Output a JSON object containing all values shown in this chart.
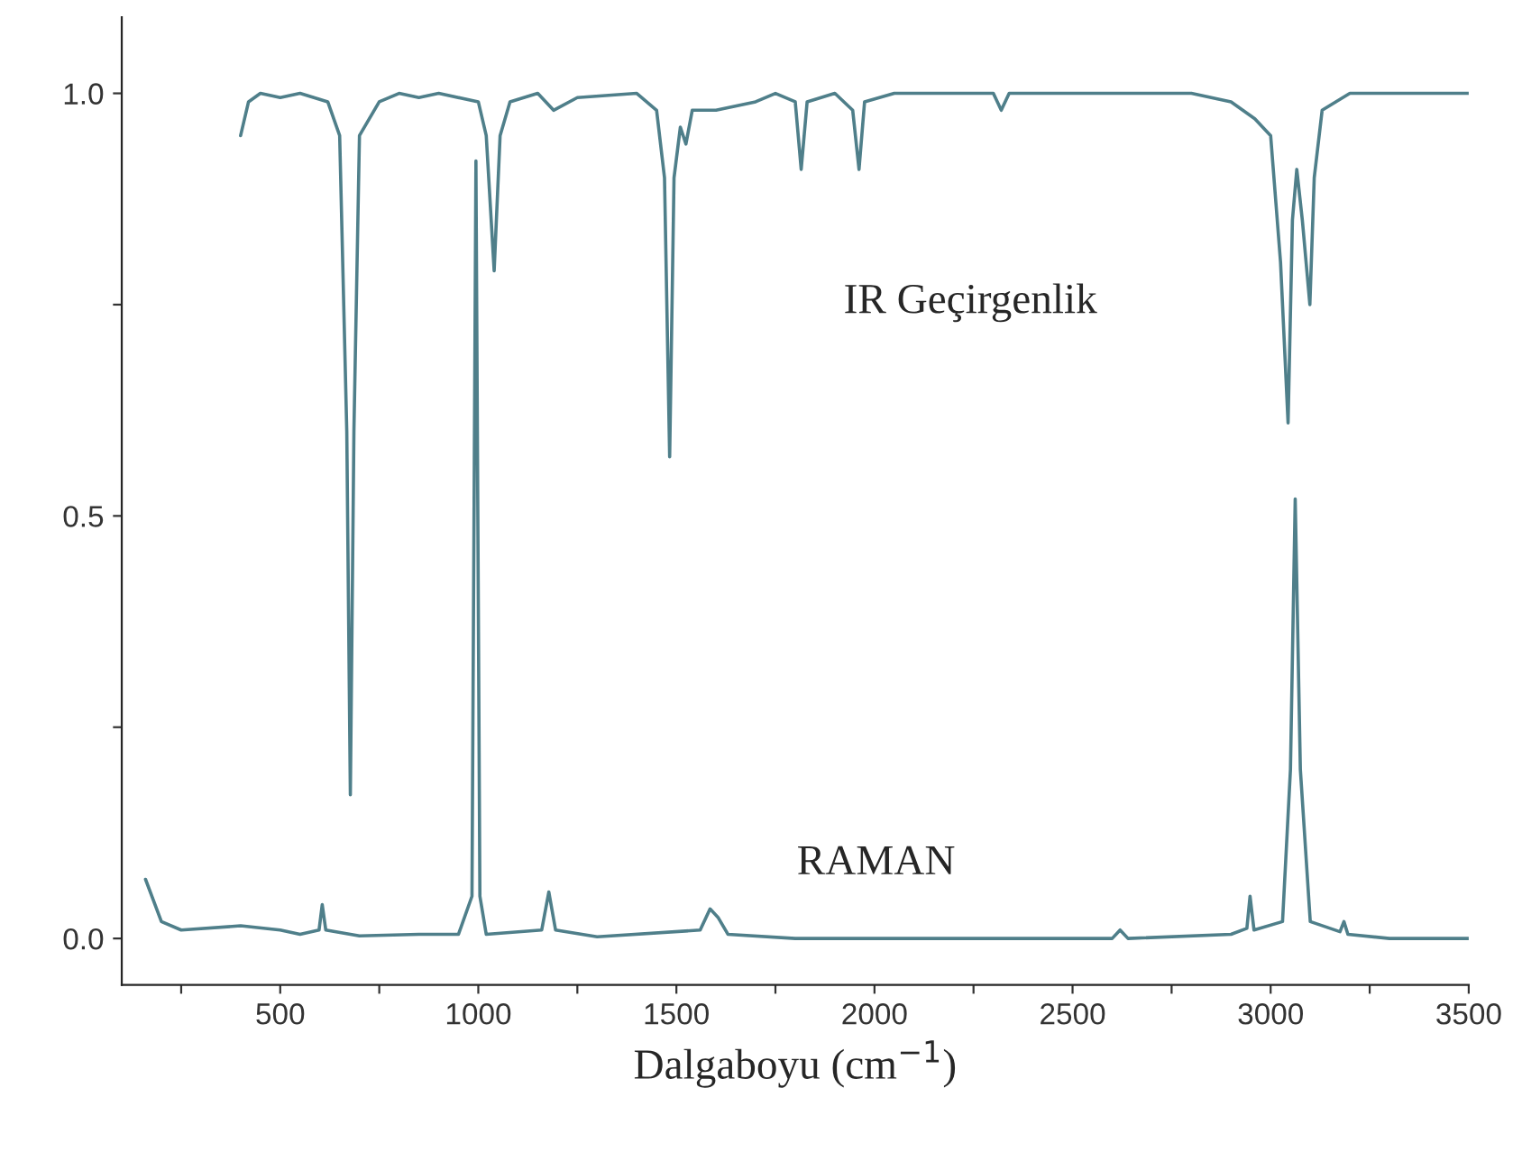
{
  "chart_data": {
    "type": "line",
    "xlabel": "Dalgaboyu (cm$^{−1}$)",
    "xlim": [
      100,
      3500
    ],
    "ylim": [
      -0.055,
      1.09
    ],
    "xticks": [
      {
        "value": 250,
        "label": null
      },
      500,
      {
        "value": 750,
        "label": null
      },
      1000,
      {
        "value": 1250,
        "label": null
      },
      1500,
      {
        "value": 1750,
        "label": null
      },
      2000,
      {
        "value": 2250,
        "label": null
      },
      2500,
      {
        "value": 2750,
        "label": null
      },
      3000,
      {
        "value": 3250,
        "label": null
      },
      3500
    ],
    "yticks": [
      {
        "value": 0,
        "label": "0.0"
      },
      {
        "value": 0.25,
        "label": null
      },
      {
        "value": 0.5,
        "label": "0.5"
      },
      {
        "value": 0.75,
        "label": null
      },
      {
        "value": 1.0,
        "label": "1.0"
      }
    ],
    "grid": false,
    "legend": false,
    "marker": "none",
    "line_style": "solid",
    "series": [
      {
        "name": "IR Geçirgenlik",
        "color": "#4f7f8a",
        "x": [
          400,
          420,
          450,
          500,
          550,
          620,
          650,
          668,
          677,
          686,
          700,
          750,
          800,
          850,
          900,
          1000,
          1020,
          1040,
          1055,
          1080,
          1150,
          1190,
          1250,
          1400,
          1450,
          1470,
          1483,
          1494,
          1510,
          1524,
          1540,
          1600,
          1700,
          1750,
          1800,
          1815,
          1830,
          1900,
          1945,
          1961,
          1975,
          2050,
          2300,
          2320,
          2340,
          2800,
          2900,
          2960,
          3000,
          3025,
          3044,
          3055,
          3066,
          3080,
          3099,
          3110,
          3130,
          3200,
          3400,
          3500
        ],
        "values": [
          0.95,
          0.99,
          1.0,
          0.995,
          1.0,
          0.99,
          0.95,
          0.6,
          0.17,
          0.6,
          0.95,
          0.99,
          1.0,
          0.995,
          1.0,
          0.99,
          0.95,
          0.79,
          0.95,
          0.99,
          1.0,
          0.98,
          0.995,
          1.0,
          0.98,
          0.9,
          0.57,
          0.9,
          0.96,
          0.94,
          0.98,
          0.98,
          0.99,
          1.0,
          0.99,
          0.91,
          0.99,
          1.0,
          0.98,
          0.91,
          0.99,
          1.0,
          1.0,
          0.98,
          1.0,
          1.0,
          0.99,
          0.97,
          0.95,
          0.8,
          0.61,
          0.85,
          0.91,
          0.85,
          0.75,
          0.9,
          0.98,
          1.0,
          1.0,
          1.0
        ]
      },
      {
        "name": "RAMAN",
        "color": "#4f7f8a",
        "x": [
          160,
          200,
          250,
          400,
          500,
          550,
          598,
          606,
          615,
          700,
          850,
          950,
          984,
          994,
          1004,
          1020,
          1160,
          1178,
          1195,
          1300,
          1560,
          1585,
          1605,
          1630,
          1800,
          2300,
          2600,
          2620,
          2640,
          2900,
          2940,
          2948,
          2958,
          3030,
          3050,
          3062,
          3075,
          3100,
          3175,
          3185,
          3195,
          3300,
          3500
        ],
        "values": [
          0.07,
          0.02,
          0.01,
          0.015,
          0.01,
          0.005,
          0.01,
          0.04,
          0.01,
          0.003,
          0.005,
          0.005,
          0.05,
          0.92,
          0.05,
          0.005,
          0.01,
          0.055,
          0.01,
          0.002,
          0.01,
          0.035,
          0.025,
          0.005,
          0.0,
          0.0,
          0.0,
          0.01,
          0.0,
          0.005,
          0.012,
          0.05,
          0.01,
          0.02,
          0.2,
          0.52,
          0.2,
          0.02,
          0.008,
          0.02,
          0.005,
          0.0,
          0.0
        ]
      }
    ]
  }
}
